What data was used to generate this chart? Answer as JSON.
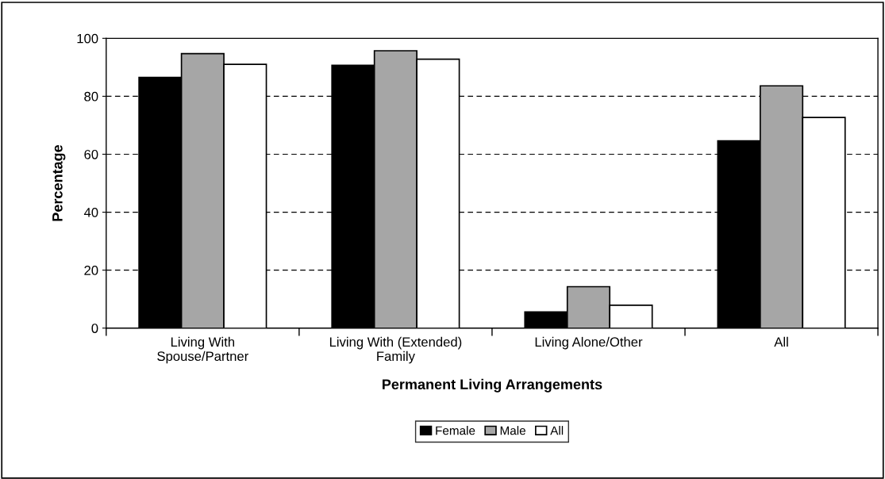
{
  "chart_data": {
    "type": "bar",
    "xlabel": "Permanent Living Arrangements",
    "ylabel": "Percentage",
    "categories": [
      "Living With\nSpouse/Partner",
      "Living With (Extended)\nFamily",
      "Living Alone/Other",
      "All"
    ],
    "series": [
      {
        "name": "Female",
        "color": "#000000",
        "values": [
          86.5,
          90.7,
          5.6,
          64.6
        ]
      },
      {
        "name": "Male",
        "color": "#a6a6a6",
        "values": [
          94.7,
          95.7,
          14.3,
          83.6
        ]
      },
      {
        "name": "All",
        "color": "#ffffff",
        "values": [
          91.0,
          92.8,
          7.9,
          72.7
        ]
      }
    ],
    "ylim": [
      0,
      100
    ],
    "yticks": [
      0,
      20,
      40,
      60,
      80,
      100
    ],
    "grid": "y",
    "legend": "bottom"
  }
}
